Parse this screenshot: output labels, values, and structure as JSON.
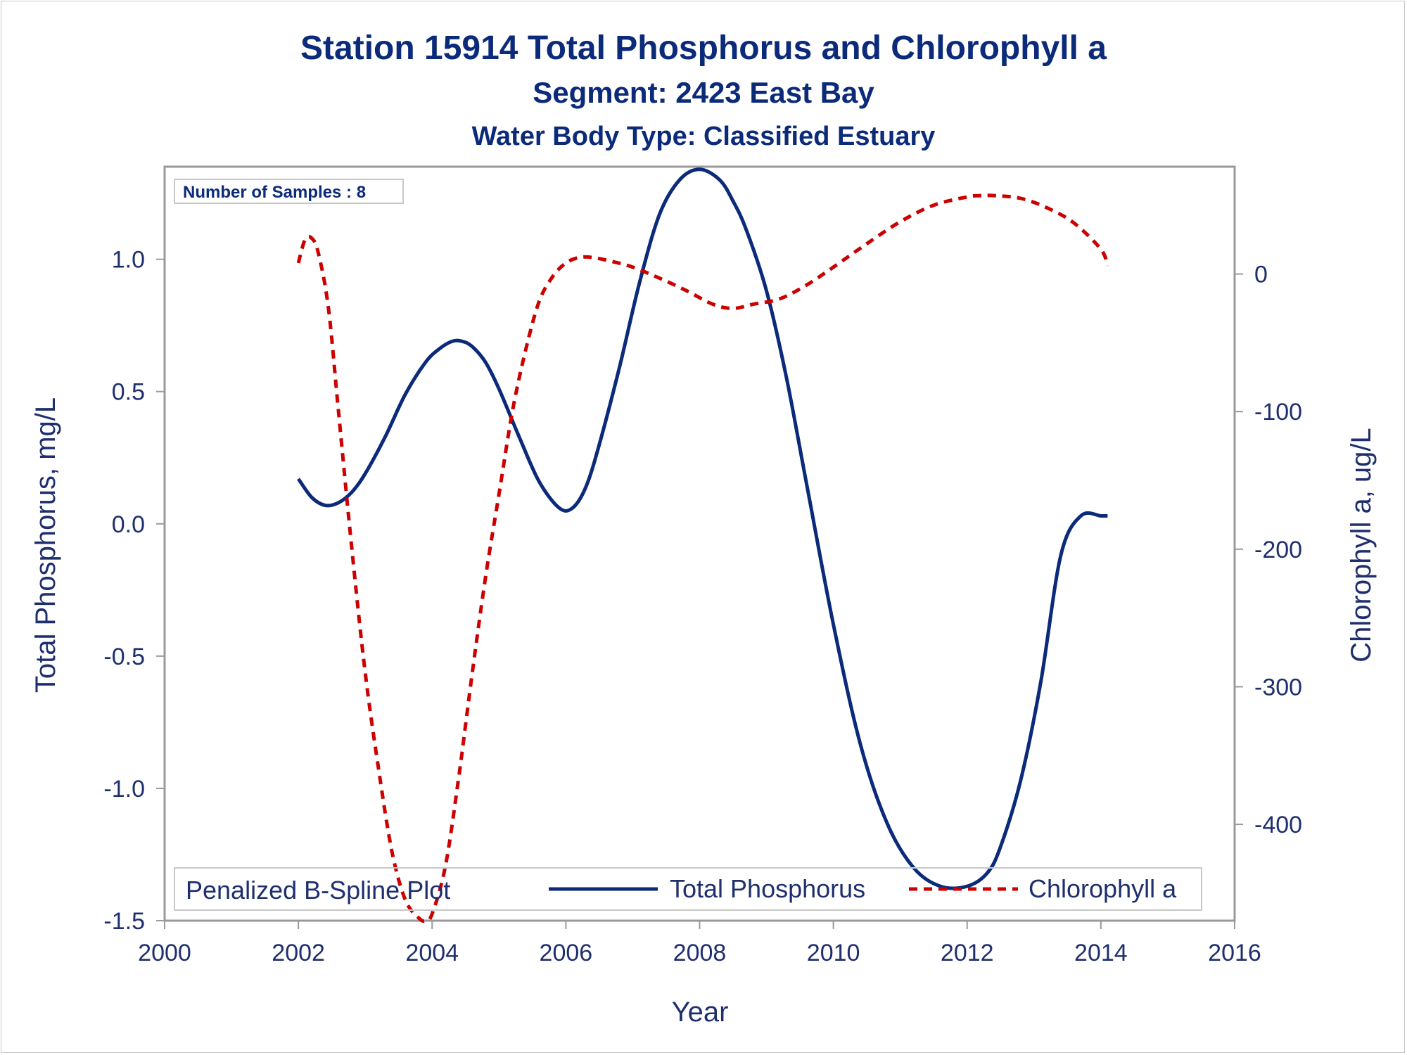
{
  "titles": {
    "title": "Station 15914  Total Phosphorus and Chlorophyll a",
    "subtitle": "Segment: 2423  East Bay",
    "subtitle2": "Water Body Type: Classified Estuary"
  },
  "colors": {
    "phosphorus": "#0b2a7a",
    "chlorophyll": "#cc0000",
    "text": "#1f2f6e",
    "frame": "#9a9a9a"
  },
  "inset": {
    "samples_label": "Number of Samples : 8"
  },
  "legend": {
    "title": "Penalized B-Spline Plot",
    "placement": "bottom-inside",
    "items": [
      {
        "label": "Total Phosphorus",
        "style": "solid"
      },
      {
        "label": "Chlorophyll a",
        "style": "dashed"
      }
    ]
  },
  "chart_data": {
    "type": "line",
    "xlabel": "Year",
    "ylabel": "Total Phosphorus, mg/L",
    "y2label": "Chlorophyll a, ug/L",
    "xlim": [
      2000,
      2016
    ],
    "ylim": [
      -1.5,
      1.35
    ],
    "y2lim": [
      -470,
      78
    ],
    "xticks": [
      "2000",
      "2002",
      "2004",
      "2006",
      "2008",
      "2010",
      "2012",
      "2014",
      "2016"
    ],
    "yticks": [
      "1.0",
      "0.5",
      "0.0",
      "-0.5",
      "-1.0",
      "-1.5"
    ],
    "y2ticks": [
      "0",
      "-100",
      "-200",
      "-300",
      "-400"
    ],
    "series": [
      {
        "name": "Total Phosphorus",
        "axis": "left",
        "x": [
          2002.0,
          2002.2,
          2002.4,
          2002.6,
          2002.8,
          2003.0,
          2003.3,
          2003.6,
          2003.9,
          2004.1,
          2004.3,
          2004.45,
          2004.6,
          2004.8,
          2005.0,
          2005.3,
          2005.6,
          2005.9,
          2006.1,
          2006.3,
          2006.5,
          2006.8,
          2007.1,
          2007.4,
          2007.7,
          2008.0,
          2008.3,
          2008.5,
          2008.7,
          2009.0,
          2009.3,
          2009.6,
          2010.0,
          2010.4,
          2010.8,
          2011.2,
          2011.6,
          2012.0,
          2012.3,
          2012.5,
          2012.8,
          2013.1,
          2013.4,
          2013.7,
          2014.0,
          2014.1
        ],
        "y": [
          0.17,
          0.1,
          0.07,
          0.08,
          0.12,
          0.19,
          0.33,
          0.49,
          0.61,
          0.66,
          0.69,
          0.69,
          0.67,
          0.61,
          0.51,
          0.33,
          0.16,
          0.06,
          0.06,
          0.14,
          0.3,
          0.59,
          0.91,
          1.17,
          1.3,
          1.34,
          1.3,
          1.22,
          1.11,
          0.88,
          0.55,
          0.15,
          -0.38,
          -0.83,
          -1.13,
          -1.3,
          -1.37,
          -1.37,
          -1.32,
          -1.22,
          -0.97,
          -0.6,
          -0.12,
          0.03,
          0.03,
          0.03
        ]
      },
      {
        "name": "Chlorophyll a",
        "axis": "right",
        "x": [
          2002.0,
          2002.1,
          2002.2,
          2002.3,
          2002.45,
          2002.6,
          2002.8,
          2003.0,
          2003.2,
          2003.4,
          2003.6,
          2003.8,
          2003.9,
          2004.0,
          2004.2,
          2004.4,
          2004.6,
          2004.8,
          2005.0,
          2005.2,
          2005.4,
          2005.6,
          2005.8,
          2006.0,
          2006.2,
          2006.4,
          2006.7,
          2007.0,
          2007.4,
          2007.8,
          2008.2,
          2008.5,
          2008.8,
          2009.2,
          2009.6,
          2010.0,
          2010.5,
          2011.0,
          2011.5,
          2012.0,
          2012.2,
          2012.4,
          2012.8,
          2013.2,
          2013.6,
          2014.0,
          2014.1
        ],
        "y": [
          8,
          25,
          26,
          15,
          -25,
          -100,
          -200,
          -290,
          -360,
          -420,
          -455,
          -468,
          -470,
          -465,
          -430,
          -365,
          -290,
          -220,
          -160,
          -100,
          -55,
          -20,
          -2,
          8,
          12,
          12,
          9,
          5,
          -3,
          -12,
          -22,
          -25,
          -22,
          -18,
          -8,
          5,
          22,
          38,
          50,
          56,
          57,
          57,
          55,
          48,
          37,
          18,
          6
        ]
      }
    ]
  }
}
